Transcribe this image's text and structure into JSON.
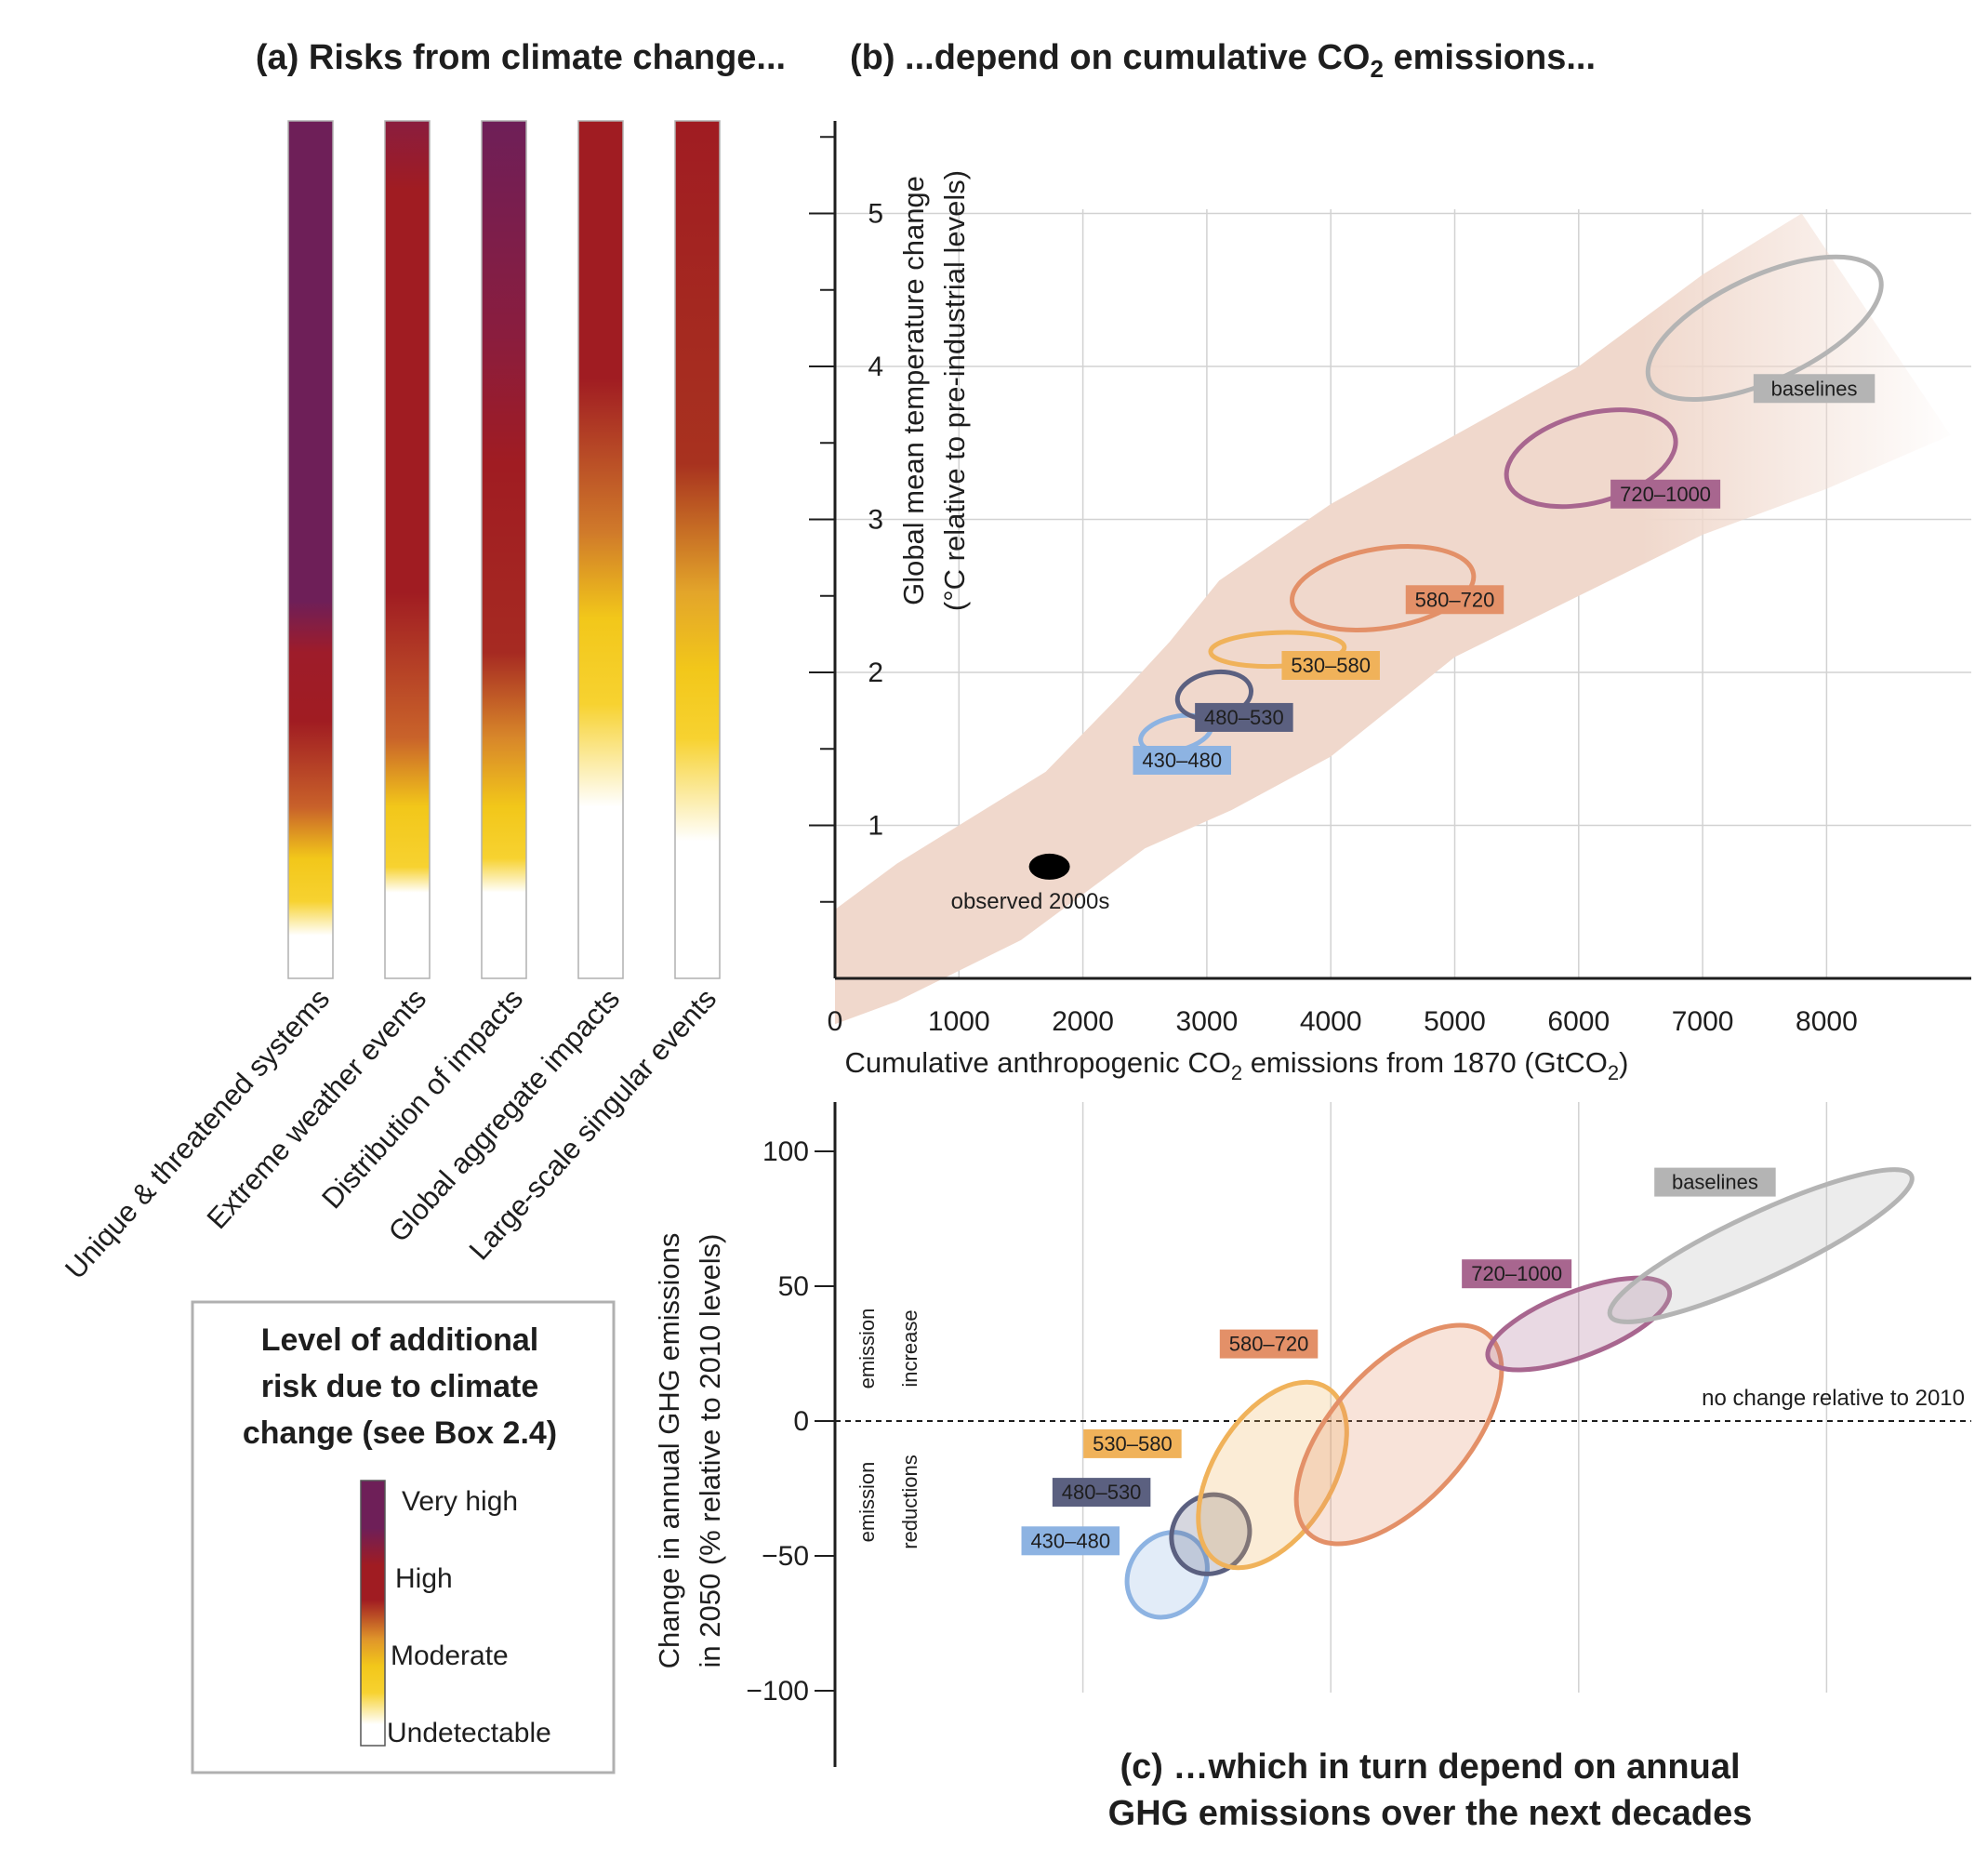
{
  "panel_a": {
    "title": "(a) Risks from climate change...",
    "columns": [
      {
        "label": "Unique & threatened systems",
        "stops": [
          [
            0.0,
            "#6e1f58"
          ],
          [
            0.56,
            "#6e1f58"
          ],
          [
            0.62,
            "#9e1c2a"
          ],
          [
            0.7,
            "#a01c22"
          ],
          [
            0.8,
            "#c8612a"
          ],
          [
            0.86,
            "#f2c71a"
          ],
          [
            0.91,
            "#f7d230"
          ],
          [
            0.95,
            "#ffffff"
          ],
          [
            1.0,
            "#ffffff"
          ]
        ]
      },
      {
        "label": "Extreme weather events",
        "stops": [
          [
            0.0,
            "#8a1d3e"
          ],
          [
            0.08,
            "#a01c22"
          ],
          [
            0.55,
            "#a01c22"
          ],
          [
            0.72,
            "#c9632a"
          ],
          [
            0.8,
            "#f2c71a"
          ],
          [
            0.87,
            "#f7d230"
          ],
          [
            0.9,
            "#ffffff"
          ],
          [
            1.0,
            "#ffffff"
          ]
        ]
      },
      {
        "label": "Distribution of impacts",
        "stops": [
          [
            0.0,
            "#6e1f58"
          ],
          [
            0.25,
            "#8a1d3e"
          ],
          [
            0.4,
            "#a01c22"
          ],
          [
            0.62,
            "#a62a22"
          ],
          [
            0.72,
            "#d8872a"
          ],
          [
            0.8,
            "#f2c71a"
          ],
          [
            0.86,
            "#f7d230"
          ],
          [
            0.9,
            "#ffffff"
          ],
          [
            1.0,
            "#ffffff"
          ]
        ]
      },
      {
        "label": "Global aggregate impacts",
        "stops": [
          [
            0.0,
            "#a01c22"
          ],
          [
            0.3,
            "#a01c22"
          ],
          [
            0.48,
            "#d07a2a"
          ],
          [
            0.58,
            "#f2c71a"
          ],
          [
            0.68,
            "#f7d230"
          ],
          [
            0.8,
            "#ffffff"
          ],
          [
            1.0,
            "#ffffff"
          ]
        ]
      },
      {
        "label": "Large-scale singular events",
        "stops": [
          [
            0.0,
            "#a01c22"
          ],
          [
            0.4,
            "#a8321f"
          ],
          [
            0.55,
            "#e3a52a"
          ],
          [
            0.64,
            "#f2c71a"
          ],
          [
            0.72,
            "#f7d230"
          ],
          [
            0.84,
            "#ffffff"
          ],
          [
            1.0,
            "#ffffff"
          ]
        ]
      }
    ]
  },
  "legend_a": {
    "title_lines": [
      "Level of additional",
      "risk due to climate",
      "change (see Box 2.4)"
    ],
    "levels": [
      {
        "label": "Very high",
        "color": "#6e1f58"
      },
      {
        "label": "High",
        "color": "#a01c22"
      },
      {
        "label": "Moderate",
        "color": "#f2c71a"
      },
      {
        "label": "Undetectable",
        "color": "#ffffff"
      }
    ]
  },
  "panel_b": {
    "title_pre": "(b) ...depend on cumulative CO",
    "title_sub": "2",
    "title_post": " emissions...",
    "ylabel_lines": [
      "Global mean temperature change",
      "(°C relative to pre-industrial levels)"
    ],
    "xlabel_pre": "Cumulative anthropogenic CO",
    "xlabel_sub": "2",
    "xlabel_mid": " emissions from 1870 (GtCO",
    "xlabel_sub2": "2",
    "xlabel_post": ")",
    "observed_label": "observed 2000s"
  },
  "panel_c": {
    "title_lines": [
      "(c) …which in turn depend on annual",
      "GHG emissions over the next decades"
    ],
    "ylabel_lines": [
      "Change in annual GHG emissions",
      "in 2050 (% relative to 2010 levels)"
    ],
    "increase_label": [
      "emission",
      "increase"
    ],
    "reduction_label": [
      "emission",
      "reductions"
    ],
    "zero_line_label": "no change relative to 2010"
  },
  "chart_data": [
    {
      "type": "scatter",
      "title": "(b) ...depend on cumulative CO2 emissions...",
      "xlabel": "Cumulative anthropogenic CO2 emissions from 1870 (GtCO2)",
      "ylabel": "Global mean temperature change (°C relative to pre-industrial levels)",
      "xlim": [
        0,
        9200
      ],
      "ylim": [
        0,
        5.6
      ],
      "xticks": [
        0,
        1000,
        2000,
        3000,
        4000,
        5000,
        6000,
        7000,
        8000
      ],
      "xgrid": [
        1000,
        2000,
        3000,
        4000,
        5000,
        6000,
        7000,
        8000
      ],
      "yticks": [
        1,
        2,
        3,
        4,
        5
      ],
      "yminor": [
        0.5,
        1.5,
        2.5,
        3.5,
        4.5,
        5.5
      ],
      "grid": true,
      "band": {
        "upper": [
          [
            0,
            0.45
          ],
          [
            500,
            0.75
          ],
          [
            1000,
            1.0
          ],
          [
            1700,
            1.35
          ],
          [
            2300,
            1.85
          ],
          [
            2700,
            2.2
          ],
          [
            3100,
            2.6
          ],
          [
            4000,
            3.1
          ],
          [
            5000,
            3.55
          ],
          [
            6000,
            4.0
          ],
          [
            7000,
            4.6
          ],
          [
            7800,
            5.0
          ]
        ],
        "lower": [
          [
            9000,
            3.55
          ],
          [
            8000,
            3.2
          ],
          [
            7000,
            2.9
          ],
          [
            6000,
            2.5
          ],
          [
            5000,
            2.1
          ],
          [
            4000,
            1.45
          ],
          [
            3200,
            1.1
          ],
          [
            2500,
            0.85
          ],
          [
            1500,
            0.25
          ],
          [
            500,
            -0.15
          ],
          [
            0,
            -0.3
          ]
        ]
      },
      "observed": {
        "x": 1730,
        "y": 0.73,
        "label": "observed 2000s"
      },
      "series": [
        {
          "label": "430–480",
          "cx": 2750,
          "cy": 1.6,
          "rx": 290,
          "ry": 0.11,
          "rot": 13,
          "color": "#8db3e2",
          "label_pos": [
            2800,
            1.38
          ],
          "fill": false
        },
        {
          "label": "480–530",
          "cx": 3060,
          "cy": 1.85,
          "rx": 300,
          "ry": 0.15,
          "rot": 10,
          "color": "#5b6080",
          "label_pos": [
            3300,
            1.66
          ],
          "fill": false
        },
        {
          "label": "530–580",
          "cx": 3570,
          "cy": 2.15,
          "rx": 540,
          "ry": 0.11,
          "rot": 2,
          "color": "#f0b25a",
          "label_pos": [
            4000,
            2.0
          ],
          "fill": false
        },
        {
          "label": "580–720",
          "cx": 4420,
          "cy": 2.55,
          "rx": 740,
          "ry": 0.26,
          "rot": 9,
          "color": "#e39068",
          "label_pos": [
            5000,
            2.43
          ],
          "fill": false
        },
        {
          "label": "720–1000",
          "cx": 6100,
          "cy": 3.4,
          "rx": 700,
          "ry": 0.29,
          "rot": 15,
          "color": "#a8668f",
          "label_pos": [
            6700,
            3.12
          ],
          "fill": false
        },
        {
          "label": "baselines",
          "cx": 7500,
          "cy": 4.25,
          "rx": 1020,
          "ry": 0.34,
          "rot": 25,
          "color": "#b4b4b4",
          "label_pos": [
            7900,
            3.81
          ],
          "fill": false
        }
      ]
    },
    {
      "type": "scatter",
      "title": "(c) …which in turn depend on annual GHG emissions over the next decades",
      "xlabel": "",
      "ylabel": "Change in annual GHG emissions in 2050 (% relative to 2010 levels)",
      "xlim": [
        0,
        9200
      ],
      "ylim": [
        -125,
        120
      ],
      "xgrid": [
        2000,
        4000,
        6000,
        8000
      ],
      "yticks": [
        100,
        50,
        0,
        -50,
        -100
      ],
      "grid": true,
      "series": [
        {
          "label": "430–480",
          "cx": 2680,
          "cy": -57,
          "rx": 360,
          "ry": 14,
          "rot": -55,
          "color": "#8db3e2",
          "label_pos": [
            1900,
            -47
          ],
          "fill": true
        },
        {
          "label": "480–530",
          "cx": 3030,
          "cy": -42,
          "rx": 330,
          "ry": 14,
          "rot": -50,
          "color": "#5b6080",
          "label_pos": [
            2150,
            -29
          ],
          "fill": true
        },
        {
          "label": "530–580",
          "cx": 3530,
          "cy": -20,
          "rx": 830,
          "ry": 22,
          "rot": -58,
          "color": "#f0b25a",
          "label_pos": [
            2400,
            -11
          ],
          "fill": true
        },
        {
          "label": "580–720",
          "cx": 4550,
          "cy": -5,
          "rx": 1080,
          "ry": 25,
          "rot": -48,
          "color": "#e39068",
          "label_pos": [
            3500,
            26
          ],
          "fill": true
        },
        {
          "label": "720–1000",
          "cx": 6000,
          "cy": 36,
          "rx": 780,
          "ry": 12,
          "rot": -21,
          "color": "#a8668f",
          "label_pos": [
            5500,
            52
          ],
          "fill": true
        },
        {
          "label": "baselines",
          "cx": 7470,
          "cy": 65,
          "rx": 1340,
          "ry": 12,
          "rot": -25,
          "color": "#b4b4b4",
          "label_pos": [
            7100,
            86
          ],
          "fill": true
        }
      ]
    }
  ]
}
